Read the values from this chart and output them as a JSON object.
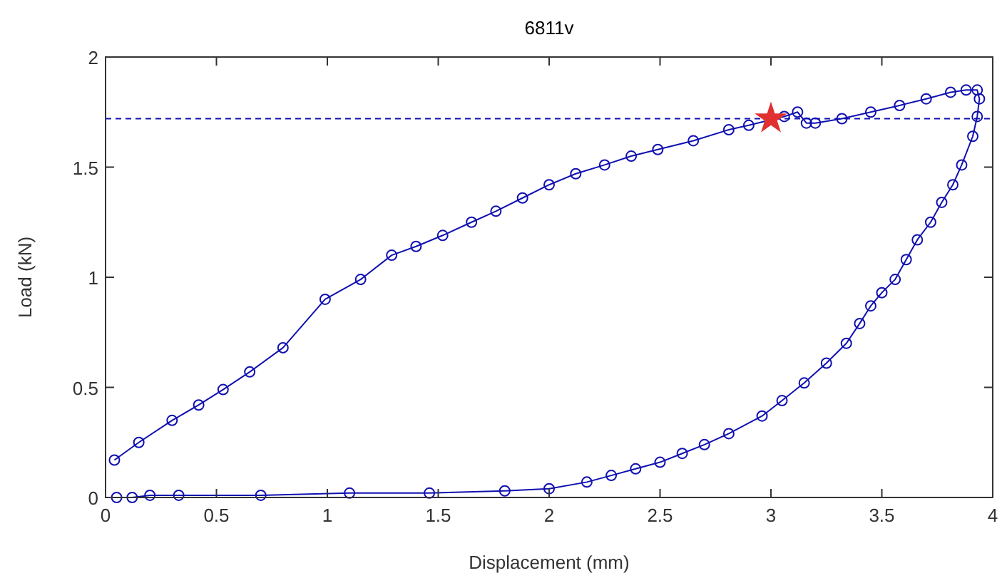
{
  "chart_data": {
    "type": "line",
    "title": "6811v",
    "xlabel": "Displacement (mm)",
    "ylabel": "Load (kN)",
    "xlim": [
      0,
      4
    ],
    "ylim": [
      0,
      2
    ],
    "xticks": [
      0,
      0.5,
      1,
      1.5,
      2,
      2.5,
      3,
      3.5,
      4
    ],
    "yticks": [
      0,
      0.5,
      1,
      1.5,
      2
    ],
    "grid": false,
    "marker": "circle",
    "line_style": "solid",
    "series": [
      {
        "color": "#1010b0",
        "x": [
          0.04,
          0.15,
          0.3,
          0.42,
          0.53,
          0.65,
          0.8,
          0.99,
          1.15,
          1.29,
          1.4,
          1.52,
          1.65,
          1.76,
          1.88,
          2.0,
          2.12,
          2.25,
          2.37,
          2.49,
          2.65,
          2.81,
          2.9,
          3.06,
          3.12,
          3.16,
          3.2,
          3.32,
          3.45,
          3.58,
          3.7,
          3.81,
          3.88,
          3.93,
          3.94,
          3.93,
          3.91,
          3.86,
          3.82,
          3.77,
          3.72,
          3.66,
          3.61,
          3.56,
          3.5,
          3.45,
          3.4,
          3.34,
          3.25,
          3.15,
          3.05,
          2.96,
          2.81,
          2.7,
          2.6,
          2.5,
          2.39,
          2.28,
          2.17,
          2.0,
          1.8,
          1.46,
          1.1,
          0.7,
          0.33,
          0.2,
          0.12,
          0.05
        ],
        "values": [
          0.17,
          0.25,
          0.35,
          0.42,
          0.49,
          0.57,
          0.68,
          0.9,
          0.99,
          1.1,
          1.14,
          1.19,
          1.25,
          1.3,
          1.36,
          1.42,
          1.47,
          1.51,
          1.55,
          1.58,
          1.62,
          1.67,
          1.69,
          1.73,
          1.75,
          1.7,
          1.7,
          1.72,
          1.75,
          1.78,
          1.81,
          1.84,
          1.85,
          1.85,
          1.81,
          1.73,
          1.64,
          1.51,
          1.42,
          1.34,
          1.25,
          1.17,
          1.08,
          0.99,
          0.93,
          0.87,
          0.79,
          0.7,
          0.61,
          0.52,
          0.44,
          0.37,
          0.29,
          0.24,
          0.2,
          0.16,
          0.13,
          0.1,
          0.07,
          0.04,
          0.03,
          0.02,
          0.02,
          0.01,
          0.01,
          0.01,
          0.0,
          0.0
        ]
      },
      {
        "type": "scatter",
        "color": "#e03030",
        "marker": "star",
        "x": [
          3.0
        ],
        "values": [
          1.72
        ]
      }
    ],
    "ref_lines": [
      {
        "axis": "y",
        "value": 1.72,
        "color": "#1010b0",
        "line_style": "dashed"
      }
    ]
  }
}
